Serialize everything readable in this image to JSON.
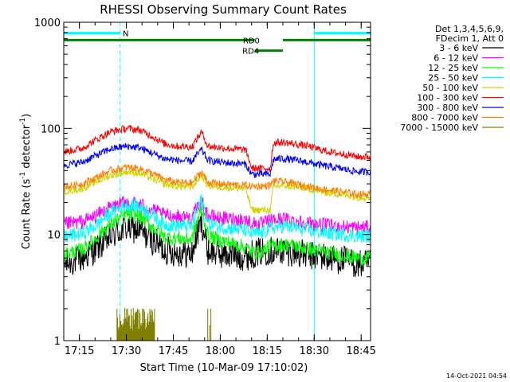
{
  "chart_data": {
    "type": "line",
    "title": "RHESSI Observing Summary Count Rates",
    "xlabel": "Start Time (10-Mar-09 17:10:02)",
    "ylabel_main": "Count Rate (s",
    "ylabel_sup1": "-1",
    "ylabel_mid": " detector",
    "ylabel_sup2": "-1",
    "ylabel_end": ")",
    "yscale": "log",
    "ylim": [
      1,
      1000
    ],
    "xlim_minutes": [
      0,
      98
    ],
    "x_ticks": [
      {
        "minute": 5,
        "label": "17:15"
      },
      {
        "minute": 20,
        "label": "17:30"
      },
      {
        "minute": 35,
        "label": "17:45"
      },
      {
        "minute": 50,
        "label": "18:00"
      },
      {
        "minute": 65,
        "label": "18:15"
      },
      {
        "minute": 80,
        "label": "18:30"
      },
      {
        "minute": 95,
        "label": "18:45"
      }
    ],
    "y_ticks": [
      {
        "value": 1,
        "label": "1"
      },
      {
        "value": 10,
        "label": "10"
      },
      {
        "value": 100,
        "label": "100"
      },
      {
        "value": 1000,
        "label": "1000"
      }
    ],
    "legend_header": [
      "Det 1,3,4,5,6,9,",
      "FDecim 1, Att 0"
    ],
    "series": [
      {
        "name": "3 - 6 keV",
        "color": "#000000",
        "values": [
          [
            0,
            5.2
          ],
          [
            6,
            6
          ],
          [
            10,
            7.2
          ],
          [
            15,
            9.5
          ],
          [
            20,
            11.5
          ],
          [
            24,
            11
          ],
          [
            28,
            9
          ],
          [
            32,
            7.2
          ],
          [
            36,
            6.8
          ],
          [
            41,
            6.5
          ],
          [
            44,
            13
          ],
          [
            46,
            7
          ],
          [
            50,
            6.6
          ],
          [
            58,
            6.2
          ],
          [
            62,
            6.8
          ],
          [
            66,
            7.1
          ],
          [
            70,
            7
          ],
          [
            74,
            6.8
          ],
          [
            78,
            6.3
          ],
          [
            82,
            6.2
          ],
          [
            86,
            5.9
          ],
          [
            90,
            5.7
          ],
          [
            94,
            5.2
          ],
          [
            98,
            5.2
          ]
        ]
      },
      {
        "name": "6 - 12 keV",
        "color": "#ff00ff",
        "values": [
          [
            0,
            12.5
          ],
          [
            6,
            13.2
          ],
          [
            10,
            14.8
          ],
          [
            15,
            18
          ],
          [
            20,
            20
          ],
          [
            24,
            19.5
          ],
          [
            28,
            17
          ],
          [
            32,
            15.2
          ],
          [
            36,
            14.8
          ],
          [
            41,
            14.5
          ],
          [
            44,
            20
          ],
          [
            46,
            15
          ],
          [
            50,
            14.2
          ],
          [
            58,
            13.8
          ],
          [
            60,
            12.8
          ],
          [
            63,
            12.5
          ],
          [
            66,
            13.5
          ],
          [
            70,
            14
          ],
          [
            74,
            13.5
          ],
          [
            78,
            12.8
          ],
          [
            82,
            12.3
          ],
          [
            86,
            12
          ],
          [
            90,
            11.8
          ],
          [
            94,
            11.6
          ],
          [
            98,
            11.6
          ]
        ]
      },
      {
        "name": "12 - 25 keV",
        "color": "#00ff00",
        "values": [
          [
            0,
            6.5
          ],
          [
            6,
            7.2
          ],
          [
            10,
            9
          ],
          [
            15,
            12.5
          ],
          [
            20,
            15.5
          ],
          [
            24,
            15
          ],
          [
            28,
            12
          ],
          [
            32,
            9.5
          ],
          [
            36,
            9.2
          ],
          [
            41,
            9
          ],
          [
            44,
            17
          ],
          [
            46,
            9.8
          ],
          [
            50,
            8.8
          ],
          [
            58,
            7.6
          ],
          [
            60,
            6.8
          ],
          [
            63,
            6.8
          ],
          [
            66,
            7.8
          ],
          [
            70,
            8
          ],
          [
            74,
            7.8
          ],
          [
            78,
            7.3
          ],
          [
            82,
            7
          ],
          [
            86,
            6.6
          ],
          [
            90,
            6.3
          ],
          [
            94,
            6
          ],
          [
            98,
            6
          ]
        ]
      },
      {
        "name": "25 - 50 keV",
        "color": "#00ffff",
        "values": [
          [
            0,
            9.5
          ],
          [
            6,
            10.2
          ],
          [
            10,
            12
          ],
          [
            15,
            16
          ],
          [
            20,
            19
          ],
          [
            24,
            18.5
          ],
          [
            28,
            15.5
          ],
          [
            32,
            12.5
          ],
          [
            36,
            12.2
          ],
          [
            41,
            12
          ],
          [
            44,
            21
          ],
          [
            46,
            12.8
          ],
          [
            50,
            11.8
          ],
          [
            58,
            11
          ],
          [
            60,
            10.2
          ],
          [
            63,
            10.2
          ],
          [
            66,
            11.5
          ],
          [
            70,
            12
          ],
          [
            74,
            11.6
          ],
          [
            78,
            11
          ],
          [
            82,
            10.5
          ],
          [
            86,
            10.2
          ],
          [
            90,
            10
          ],
          [
            94,
            9.7
          ],
          [
            98,
            9.7
          ]
        ]
      },
      {
        "name": "50 - 100 keV",
        "color": "#d2d200",
        "values": [
          [
            0,
            25.5
          ],
          [
            6,
            27
          ],
          [
            10,
            31
          ],
          [
            15,
            36
          ],
          [
            20,
            39
          ],
          [
            24,
            38
          ],
          [
            28,
            34
          ],
          [
            32,
            30
          ],
          [
            36,
            28.5
          ],
          [
            41,
            28
          ],
          [
            44,
            36
          ],
          [
            46,
            29
          ],
          [
            50,
            28
          ],
          [
            58,
            27
          ],
          [
            60,
            17
          ],
          [
            63,
            17
          ],
          [
            66,
            17
          ],
          [
            67,
            28
          ],
          [
            70,
            29
          ],
          [
            74,
            28
          ],
          [
            78,
            27
          ],
          [
            82,
            25.5
          ],
          [
            86,
            24.5
          ],
          [
            90,
            23.5
          ],
          [
            94,
            22.5
          ],
          [
            98,
            22.5
          ]
        ]
      },
      {
        "name": "100 - 300 keV",
        "color": "#ff0000",
        "values": [
          [
            0,
            60
          ],
          [
            6,
            65
          ],
          [
            10,
            77
          ],
          [
            15,
            93
          ],
          [
            20,
            100
          ],
          [
            24,
            97
          ],
          [
            28,
            85
          ],
          [
            32,
            72
          ],
          [
            36,
            68
          ],
          [
            41,
            67
          ],
          [
            44,
            92
          ],
          [
            46,
            68
          ],
          [
            50,
            66
          ],
          [
            54,
            64
          ],
          [
            58,
            63
          ],
          [
            60,
            42
          ],
          [
            63,
            42
          ],
          [
            66,
            42
          ],
          [
            67,
            73
          ],
          [
            70,
            74
          ],
          [
            74,
            71
          ],
          [
            78,
            68
          ],
          [
            82,
            63
          ],
          [
            86,
            59
          ],
          [
            90,
            57
          ],
          [
            94,
            54
          ],
          [
            98,
            54
          ]
        ]
      },
      {
        "name": "300 - 800 keV",
        "color": "#0000ff",
        "values": [
          [
            0,
            45
          ],
          [
            6,
            48
          ],
          [
            10,
            55
          ],
          [
            15,
            64
          ],
          [
            20,
            68
          ],
          [
            24,
            66
          ],
          [
            28,
            59
          ],
          [
            32,
            52
          ],
          [
            36,
            50
          ],
          [
            41,
            49
          ],
          [
            44,
            63
          ],
          [
            46,
            50
          ],
          [
            50,
            48
          ],
          [
            58,
            46
          ],
          [
            60,
            37
          ],
          [
            63,
            37
          ],
          [
            66,
            37
          ],
          [
            67,
            51
          ],
          [
            70,
            52
          ],
          [
            74,
            50
          ],
          [
            78,
            48
          ],
          [
            82,
            45
          ],
          [
            86,
            43
          ],
          [
            90,
            41
          ],
          [
            94,
            39
          ],
          [
            98,
            39
          ]
        ]
      },
      {
        "name": "800 - 7000 keV",
        "color": "#ff8000",
        "values": [
          [
            0,
            28
          ],
          [
            6,
            30
          ],
          [
            10,
            34
          ],
          [
            15,
            40
          ],
          [
            20,
            43
          ],
          [
            24,
            42
          ],
          [
            28,
            38
          ],
          [
            32,
            33
          ],
          [
            36,
            31
          ],
          [
            41,
            30.5
          ],
          [
            44,
            39
          ],
          [
            46,
            31
          ],
          [
            50,
            30
          ],
          [
            58,
            29
          ],
          [
            60,
            28.5
          ],
          [
            63,
            28.5
          ],
          [
            66,
            29
          ],
          [
            67,
            32
          ],
          [
            70,
            31.5
          ],
          [
            74,
            30
          ],
          [
            78,
            28.5
          ],
          [
            82,
            27
          ],
          [
            86,
            26
          ],
          [
            90,
            25
          ],
          [
            94,
            24
          ],
          [
            98,
            24
          ]
        ]
      },
      {
        "name": "7000 - 15000 keV",
        "color": "#808000",
        "values": [
          [
            17,
            2
          ],
          [
            18.5,
            1.4
          ],
          [
            19.5,
            2
          ],
          [
            20.5,
            1.3
          ],
          [
            21.5,
            2
          ],
          [
            22.5,
            1.3
          ],
          [
            23.5,
            2
          ],
          [
            24.5,
            1.4
          ],
          [
            25.5,
            2
          ],
          [
            26.5,
            1.3
          ],
          [
            27.5,
            2
          ],
          [
            28.5,
            1.5
          ],
          [
            29,
            2
          ],
          [
            46,
            2
          ],
          [
            46.6,
            1.4
          ],
          [
            47,
            2
          ]
        ]
      }
    ],
    "flags": [
      {
        "label": "N",
        "color": "#00ffff",
        "segments": [
          [
            0,
            18
          ],
          [
            80,
            98
          ]
        ],
        "level_value": 790
      },
      {
        "label": "RD0",
        "color": "#008000",
        "segments": [
          [
            0,
            61
          ],
          [
            70,
            98
          ]
        ],
        "level_value": 680
      },
      {
        "label": "RD4",
        "color": "#008000",
        "segments": [
          [
            61,
            70
          ]
        ],
        "level_value": 540
      }
    ],
    "vlines": [
      {
        "minute": 0,
        "color": "#00ffff",
        "dashed": false
      },
      {
        "minute": 18,
        "color": "#00ffff",
        "dashed": true
      },
      {
        "minute": 80,
        "color": "#00ffff",
        "dashed": false
      },
      {
        "minute": 98,
        "color": "#00ffff",
        "dashed": true
      }
    ],
    "timestamp": "14-Oct-2021 04:54"
  }
}
